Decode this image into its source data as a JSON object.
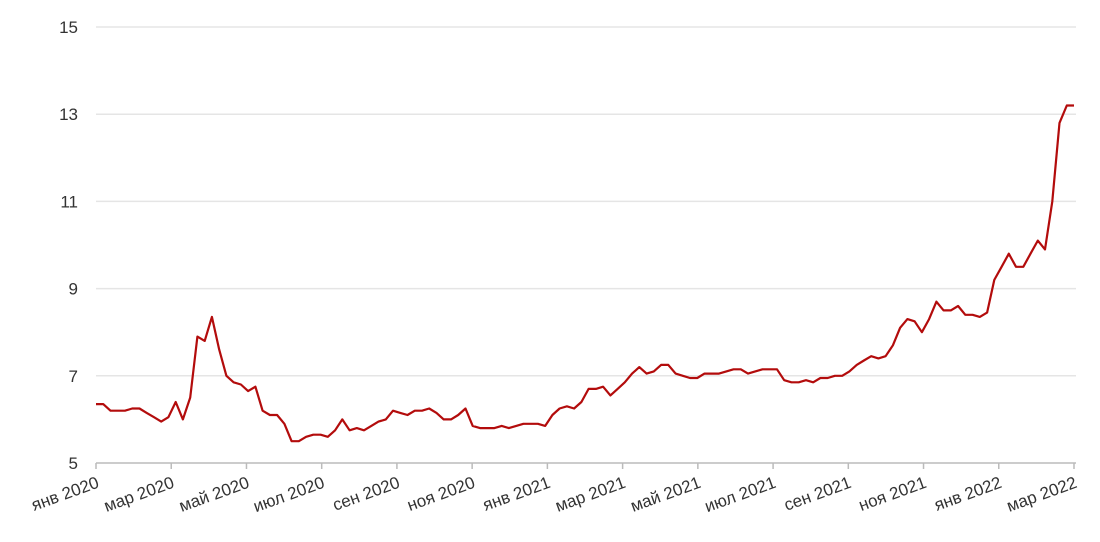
{
  "chart_data": {
    "type": "line",
    "xlabels": [
      "янв 2020",
      "мар 2020",
      "май 2020",
      "июл 2020",
      "сен 2020",
      "ноя 2020",
      "янв 2021",
      "мар 2021",
      "май 2021",
      "июл 2021",
      "сен 2021",
      "ноя 2021",
      "янв 2022",
      "мар 2022"
    ],
    "values": [
      6.35,
      6.35,
      6.2,
      6.2,
      6.2,
      6.25,
      6.25,
      6.15,
      6.05,
      5.95,
      6.05,
      6.4,
      6.0,
      6.5,
      7.9,
      7.8,
      8.35,
      7.6,
      7.0,
      6.85,
      6.8,
      6.65,
      6.75,
      6.2,
      6.1,
      6.1,
      5.9,
      5.5,
      5.5,
      5.6,
      5.65,
      5.65,
      5.6,
      5.75,
      6.0,
      5.75,
      5.8,
      5.75,
      5.85,
      5.95,
      6.0,
      6.2,
      6.15,
      6.1,
      6.2,
      6.2,
      6.25,
      6.15,
      6.0,
      6.0,
      6.1,
      6.25,
      5.85,
      5.8,
      5.8,
      5.8,
      5.85,
      5.8,
      5.85,
      5.9,
      5.9,
      5.9,
      5.85,
      6.1,
      6.25,
      6.3,
      6.25,
      6.4,
      6.7,
      6.7,
      6.75,
      6.55,
      6.7,
      6.85,
      7.05,
      7.2,
      7.05,
      7.1,
      7.25,
      7.25,
      7.05,
      7.0,
      6.95,
      6.95,
      7.05,
      7.05,
      7.05,
      7.1,
      7.15,
      7.15,
      7.05,
      7.1,
      7.15,
      7.15,
      7.15,
      6.9,
      6.85,
      6.85,
      6.9,
      6.85,
      6.95,
      6.95,
      7.0,
      7.0,
      7.1,
      7.25,
      7.35,
      7.45,
      7.4,
      7.45,
      7.7,
      8.1,
      8.3,
      8.25,
      8.0,
      8.3,
      8.7,
      8.5,
      8.5,
      8.6,
      8.4,
      8.4,
      8.35,
      8.45,
      9.2,
      9.5,
      9.8,
      9.5,
      9.5,
      9.8,
      10.1,
      9.9,
      11.0,
      12.8,
      13.2,
      13.2
    ],
    "color": "#b30c0c",
    "ylim": [
      5,
      15
    ],
    "yticks": [
      5,
      7,
      9,
      11,
      13,
      15
    ],
    "grid": true
  }
}
